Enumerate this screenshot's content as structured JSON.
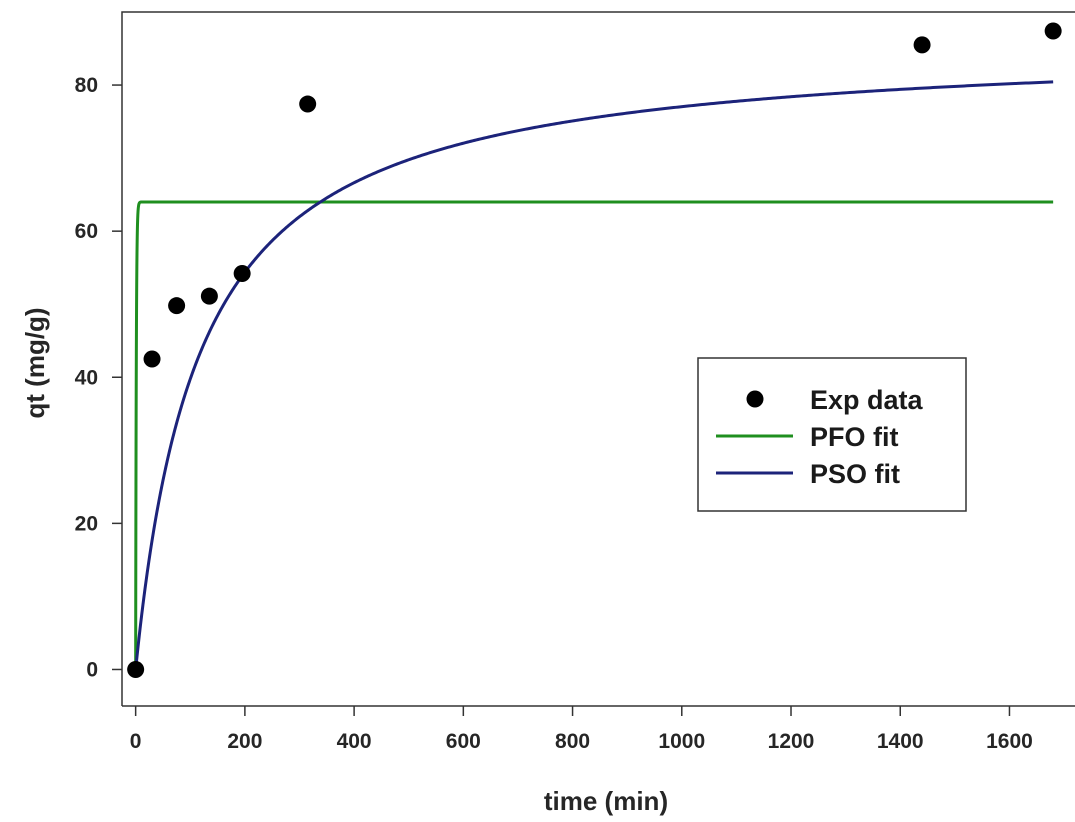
{
  "chart_data": {
    "type": "scatter",
    "title": "",
    "xlabel": "time (min)",
    "ylabel": "qt (mg/g)",
    "xlim": [
      -25,
      1720
    ],
    "ylim": [
      -5,
      90
    ],
    "xticks": [
      0,
      200,
      400,
      600,
      800,
      1000,
      1200,
      1400,
      1600
    ],
    "yticks": [
      0,
      20,
      40,
      60,
      80
    ],
    "grid": false,
    "legend_position": "right",
    "series": [
      {
        "name": "Exp data",
        "kind": "points",
        "color": "#000000",
        "x": [
          0,
          30,
          75,
          135,
          195,
          315,
          1440,
          1680
        ],
        "y": [
          0,
          42.5,
          49.8,
          51.1,
          54.2,
          77.4,
          85.5,
          87.4
        ]
      },
      {
        "name": "PFO fit",
        "kind": "line",
        "color": "#1f8f1f",
        "model": "pseudo-first-order",
        "qe": 64,
        "k1": 0.9,
        "x_range": [
          0,
          1680
        ]
      },
      {
        "name": "PSO fit",
        "kind": "line",
        "color": "#1c237a",
        "model": "pseudo-second-order",
        "qe": 86,
        "k2": 0.0001,
        "x_range": [
          0,
          1680
        ]
      }
    ]
  }
}
